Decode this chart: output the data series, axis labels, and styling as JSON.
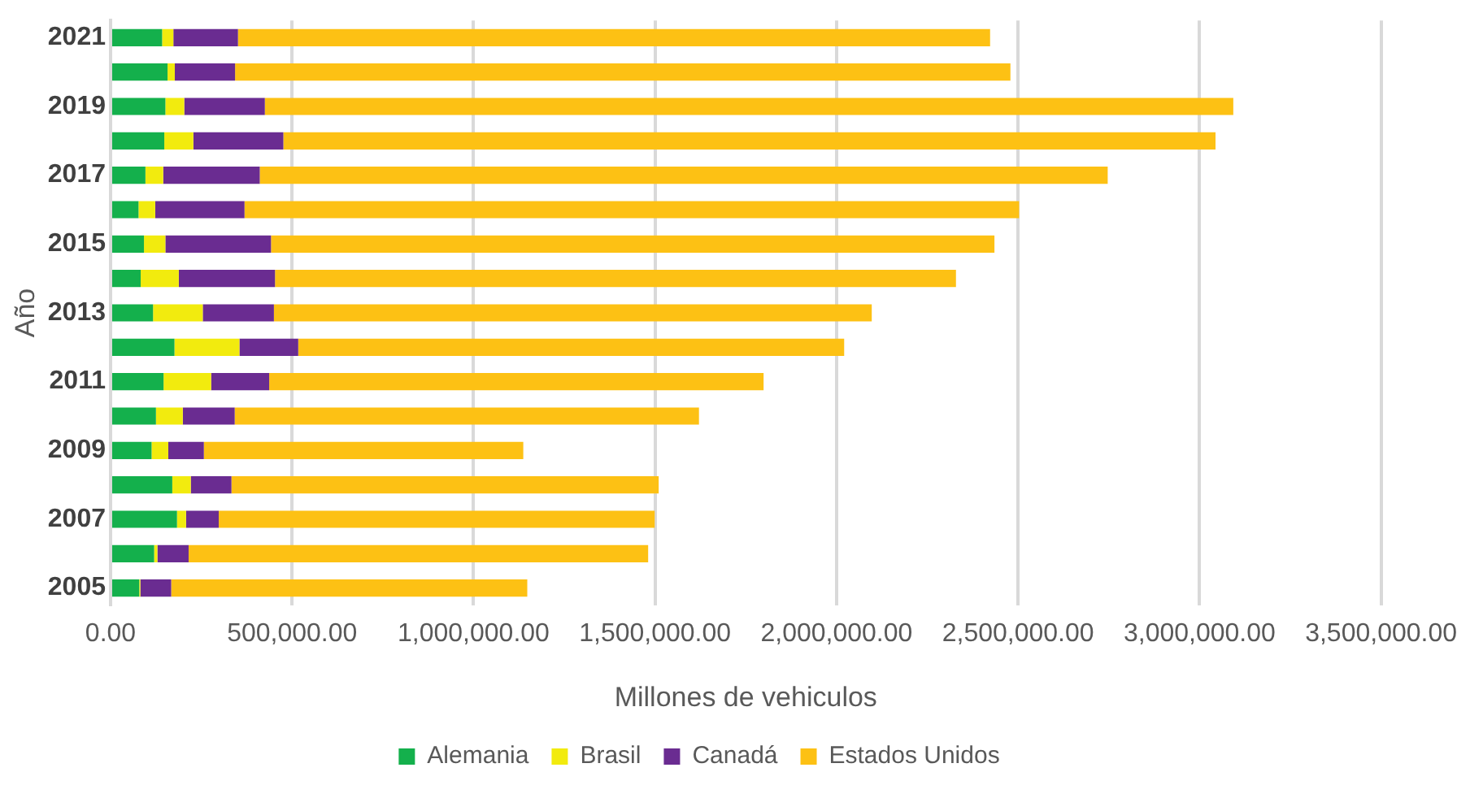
{
  "chart_data": {
    "type": "bar",
    "orientation": "horizontal",
    "stacked": true,
    "xlabel": "Millones de vehiculos",
    "ylabel": "Año",
    "categories": [
      "2021",
      null,
      "2019",
      null,
      "2017",
      null,
      "2015",
      null,
      "2013",
      null,
      "2011",
      null,
      "2009",
      null,
      "2007",
      null,
      "2005"
    ],
    "series": [
      {
        "name": "Alemania",
        "color": "#14b04c",
        "values": [
          142000,
          157000,
          151000,
          148000,
          96000,
          77000,
          92000,
          83000,
          117000,
          176000,
          146000,
          125000,
          113000,
          170000,
          183000,
          120000,
          79000
        ]
      },
      {
        "name": "Brasil",
        "color": "#f2eb0e",
        "values": [
          31000,
          20000,
          52000,
          80000,
          49000,
          46000,
          59000,
          105000,
          137000,
          179000,
          131000,
          74000,
          46000,
          51000,
          25000,
          9000,
          3000
        ]
      },
      {
        "name": "Canadá",
        "color": "#6a2c91",
        "values": [
          178000,
          166000,
          222000,
          248000,
          266000,
          246000,
          291000,
          265000,
          196000,
          162000,
          160000,
          143000,
          98000,
          112000,
          90000,
          86000,
          85000
        ]
      },
      {
        "name": "Estados Unidos",
        "color": "#fdc114",
        "values": [
          2072000,
          2136000,
          2668000,
          2568000,
          2336000,
          2134000,
          1993000,
          1876000,
          1647000,
          1504000,
          1362000,
          1279000,
          880000,
          1177000,
          1201000,
          1266000,
          981000
        ]
      }
    ],
    "xlim": [
      0,
      3500000
    ],
    "xticks": [
      {
        "value": 0,
        "label": "0.00"
      },
      {
        "value": 500000,
        "label": "500,000.00"
      },
      {
        "value": 1000000,
        "label": "1,000,000.00"
      },
      {
        "value": 1500000,
        "label": "1,500,000.00"
      },
      {
        "value": 2000000,
        "label": "2,000,000.00"
      },
      {
        "value": 2500000,
        "label": "2,500,000.00"
      },
      {
        "value": 3000000,
        "label": "3,000,000.00"
      },
      {
        "value": 3500000,
        "label": "3,500,000.00"
      }
    ],
    "grid": "x",
    "legend": "bottom"
  }
}
